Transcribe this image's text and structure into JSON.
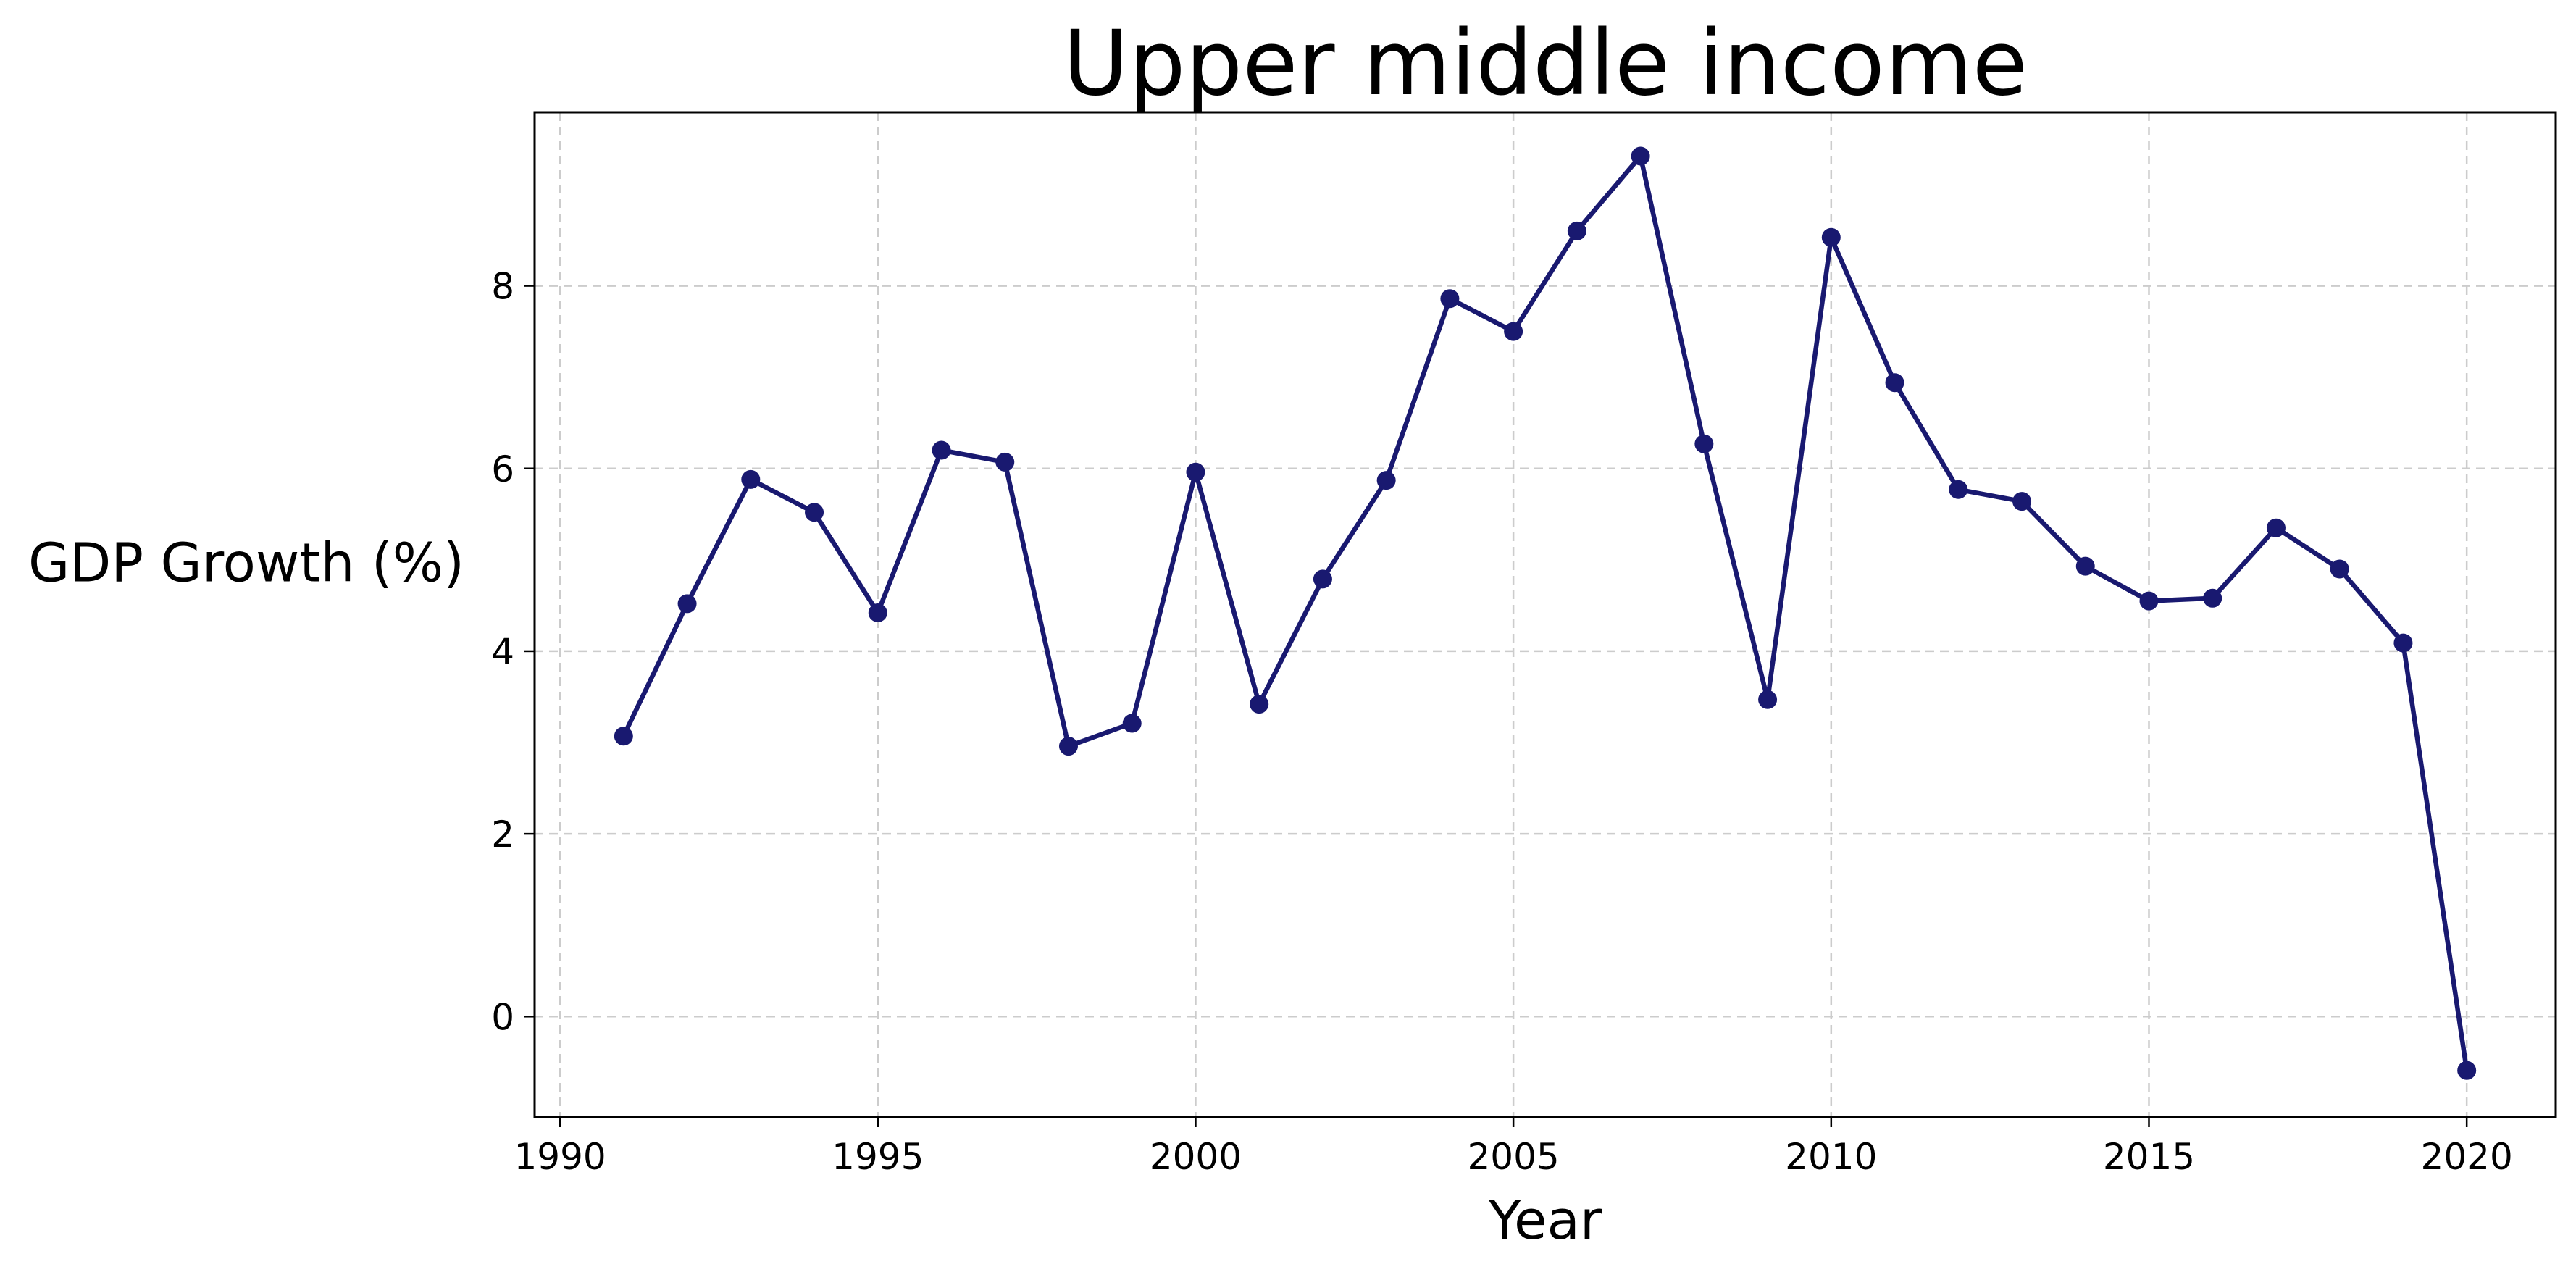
{
  "chart_data": {
    "type": "line",
    "title": "Upper middle income",
    "xlabel": "Year",
    "ylabel": "GDP Growth (%)",
    "xlim": [
      1989.6,
      2021.4
    ],
    "ylim": [
      -1.1,
      9.9
    ],
    "xticks": [
      1990,
      1995,
      2000,
      2005,
      2010,
      2015,
      2020
    ],
    "yticks": [
      0,
      2,
      4,
      6,
      8
    ],
    "grid": true,
    "line_color": "#191970",
    "series": [
      {
        "x": [
          1991,
          1992,
          1993,
          1994,
          1995,
          1996,
          1997,
          1998,
          1999,
          2000,
          2001,
          2002,
          2003,
          2004,
          2005,
          2006,
          2007,
          2008,
          2009,
          2010,
          2011,
          2012,
          2013,
          2014,
          2015,
          2016,
          2017,
          2018,
          2019,
          2020
        ],
        "y": [
          3.07,
          4.52,
          5.88,
          5.52,
          4.42,
          6.2,
          6.07,
          2.96,
          3.21,
          5.96,
          3.42,
          4.79,
          5.87,
          7.86,
          7.5,
          8.6,
          9.42,
          6.27,
          3.47,
          8.53,
          6.94,
          5.77,
          5.64,
          4.93,
          4.55,
          4.58,
          5.35,
          4.9,
          4.09,
          -0.59
        ]
      }
    ]
  }
}
